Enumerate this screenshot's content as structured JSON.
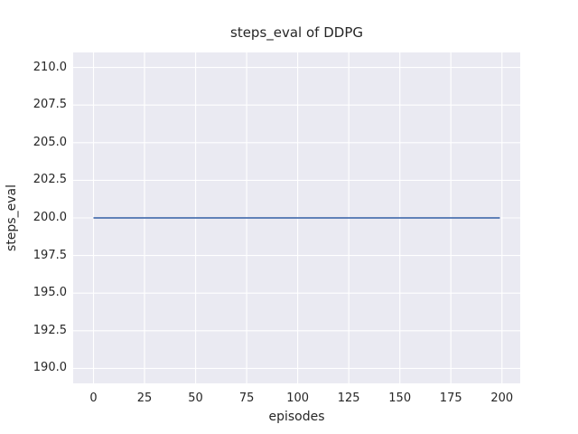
{
  "chart_data": {
    "type": "line",
    "title": "steps_eval of DDPG",
    "xlabel": "episodes",
    "ylabel": "steps_eval",
    "x": [
      0,
      199
    ],
    "series": [
      {
        "name": "steps_eval",
        "color": "#4C72B0",
        "values": [
          200,
          200
        ]
      }
    ],
    "xlim": [
      -9.95,
      208.95
    ],
    "ylim": [
      189,
      211
    ],
    "xticks": [
      0,
      25,
      50,
      75,
      100,
      125,
      150,
      175,
      200
    ],
    "xtick_labels": [
      "0",
      "25",
      "50",
      "75",
      "100",
      "125",
      "150",
      "175",
      "200"
    ],
    "yticks": [
      190.0,
      192.5,
      195.0,
      197.5,
      200.0,
      202.5,
      205.0,
      207.5,
      210.0
    ],
    "ytick_labels": [
      "190.0",
      "192.5",
      "195.0",
      "197.5",
      "200.0",
      "202.5",
      "205.0",
      "207.5",
      "210.0"
    ],
    "grid": true,
    "legend": "none",
    "plot_background": "#EAEAF2",
    "grid_color": "#FFFFFF",
    "text_color": "#262626",
    "line_width": 1.8
  }
}
